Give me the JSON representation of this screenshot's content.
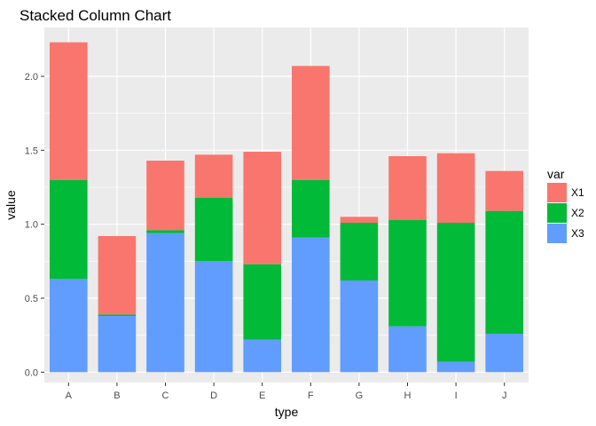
{
  "chart_data": {
    "type": "bar",
    "stacked": true,
    "title": "Stacked Column Chart",
    "xlabel": "type",
    "ylabel": "value",
    "categories": [
      "A",
      "B",
      "C",
      "D",
      "E",
      "F",
      "G",
      "H",
      "I",
      "J"
    ],
    "series": [
      {
        "name": "X3",
        "color": "#619CFF",
        "values": [
          0.63,
          0.38,
          0.94,
          0.75,
          0.22,
          0.91,
          0.62,
          0.31,
          0.07,
          0.26
        ]
      },
      {
        "name": "X2",
        "color": "#00BA38",
        "values": [
          0.67,
          0.01,
          0.02,
          0.43,
          0.51,
          0.39,
          0.39,
          0.72,
          0.94,
          0.83
        ]
      },
      {
        "name": "X1",
        "color": "#F8766D",
        "values": [
          0.93,
          0.53,
          0.47,
          0.29,
          0.76,
          0.77,
          0.04,
          0.43,
          0.47,
          0.27
        ]
      }
    ],
    "ylim": [
      -0.07,
      2.33
    ],
    "yticks": [
      0.0,
      0.5,
      1.0,
      1.5,
      2.0
    ],
    "ytick_labels": [
      "0.0",
      "0.5",
      "1.0",
      "1.5",
      "2.0"
    ],
    "grid": true,
    "legend": {
      "title": "var",
      "placement": "right",
      "entries": [
        {
          "label": "X1",
          "color": "#F8766D"
        },
        {
          "label": "X2",
          "color": "#00BA38"
        },
        {
          "label": "X3",
          "color": "#619CFF"
        }
      ]
    },
    "panel_background": "#EBEBEB",
    "grid_color": "#FFFFFF"
  }
}
